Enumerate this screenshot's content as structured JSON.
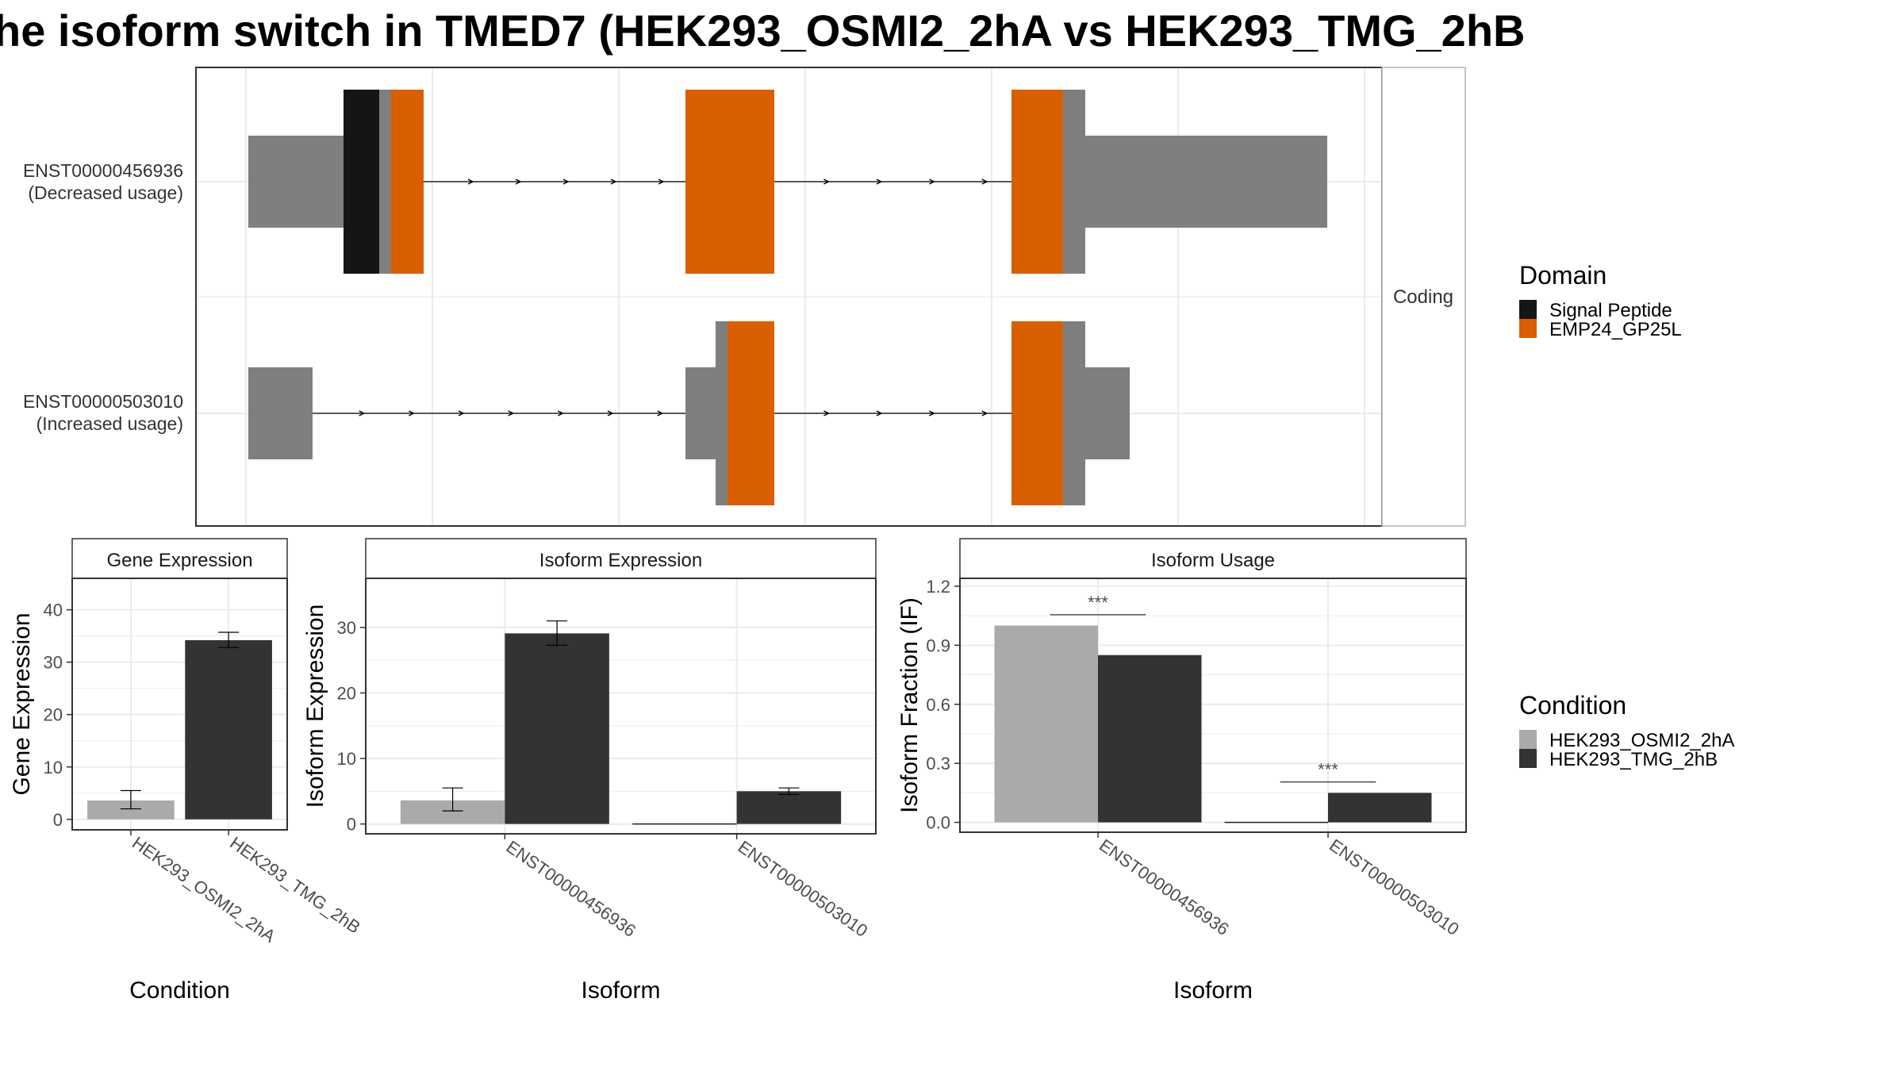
{
  "title": "he isoform switch in TMED7 (HEK293_OSMI2_2hA vs HEK293_TMG_2hB",
  "colors": {
    "exon": "#7f7f7f",
    "signal_peptide": "#151515",
    "emp24": "#d95f02",
    "cond_a": "#aaaaaa",
    "cond_b": "#333333",
    "grid": "#ebebeb",
    "frame": "#333333"
  },
  "structure": {
    "facet_label": "Coding",
    "isoforms": [
      {
        "id": "ENST00000456936",
        "note": "(Decreased usage)"
      },
      {
        "id": "ENST00000503010",
        "note": "(Increased usage)"
      }
    ]
  },
  "domain_legend": {
    "title": "Domain",
    "items": [
      {
        "label": "Signal Peptide",
        "color": "#151515"
      },
      {
        "label": "EMP24_GP25L",
        "color": "#d95f02"
      }
    ]
  },
  "condition_legend": {
    "title": "Condition",
    "items": [
      {
        "label": "HEK293_OSMI2_2hA",
        "color": "#aaaaaa"
      },
      {
        "label": "HEK293_TMG_2hB",
        "color": "#333333"
      }
    ]
  },
  "chart_data": [
    {
      "type": "bar",
      "panel": "Gene Expression",
      "xlabel": "Condition",
      "ylabel": "Gene Expression",
      "categories": [
        "HEK293_OSMI2_2hA",
        "HEK293_TMG_2hB"
      ],
      "values": [
        3.6,
        34.2
      ],
      "error_low": [
        2.0,
        32.8
      ],
      "error_high": [
        5.5,
        35.7
      ],
      "ylim": [
        -2,
        46
      ],
      "yticks": [
        0,
        10,
        20,
        30,
        40
      ]
    },
    {
      "type": "bar",
      "panel": "Isoform Expression",
      "xlabel": "Isoform",
      "ylabel": "Isoform Expression",
      "categories": [
        "ENST00000456936",
        "ENST00000503010"
      ],
      "series": [
        {
          "name": "HEK293_OSMI2_2hA",
          "values": [
            3.6,
            0.0
          ],
          "error_low": [
            2.0,
            null
          ],
          "error_high": [
            5.5,
            null
          ]
        },
        {
          "name": "HEK293_TMG_2hB",
          "values": [
            29.1,
            5.0
          ],
          "error_low": [
            27.3,
            4.5
          ],
          "error_high": [
            31.0,
            5.5
          ]
        }
      ],
      "ylim": [
        -1.5,
        37.5
      ],
      "yticks": [
        0,
        10,
        20,
        30
      ]
    },
    {
      "type": "bar",
      "panel": "Isoform Usage",
      "xlabel": "Isoform",
      "ylabel": "Isoform Fraction (IF)",
      "categories": [
        "ENST00000456936",
        "ENST00000503010"
      ],
      "series": [
        {
          "name": "HEK293_OSMI2_2hA",
          "values": [
            1.0,
            0.0
          ]
        },
        {
          "name": "HEK293_TMG_2hB",
          "values": [
            0.85,
            0.15
          ]
        }
      ],
      "significance": [
        "***",
        "***"
      ],
      "ylim": [
        -0.05,
        1.24
      ],
      "yticks": [
        0.0,
        0.3,
        0.6,
        0.9,
        1.2
      ],
      "ytick_labels": [
        "0.0",
        "0.3",
        "0.6",
        "0.9",
        "1.2"
      ]
    }
  ]
}
